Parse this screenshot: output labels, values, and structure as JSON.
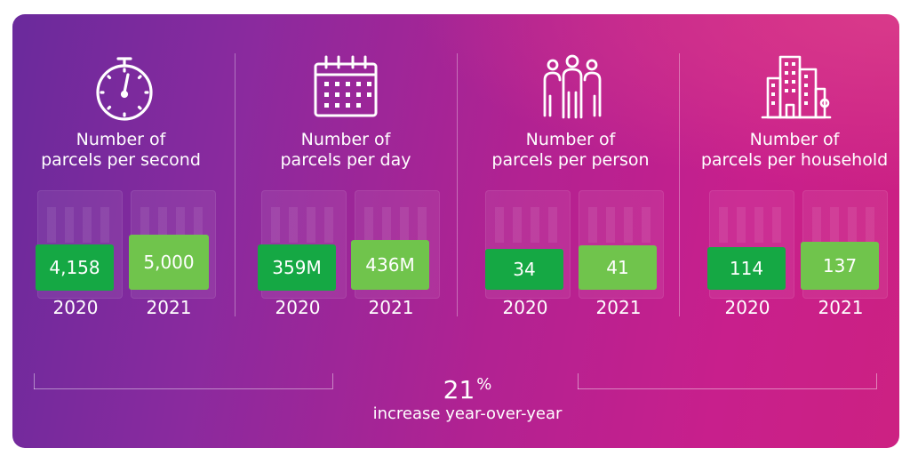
{
  "chart_data": {
    "type": "bar",
    "title": "",
    "panels": [
      {
        "title_line1": "Number of",
        "title_line2": "parcels per second",
        "icon": "stopwatch-icon",
        "values": [
          {
            "year": "2020",
            "label": "4,158",
            "value": 4158
          },
          {
            "year": "2021",
            "label": "5,000",
            "value": 5000
          }
        ]
      },
      {
        "title_line1": "Number of",
        "title_line2": "parcels per day",
        "icon": "calendar-icon",
        "values": [
          {
            "year": "2020",
            "label": "359M",
            "value": 359000000
          },
          {
            "year": "2021",
            "label": "436M",
            "value": 436000000
          }
        ]
      },
      {
        "title_line1": "Number of",
        "title_line2": "parcels per person",
        "icon": "people-icon",
        "values": [
          {
            "year": "2020",
            "label": "34",
            "value": 34
          },
          {
            "year": "2021",
            "label": "41",
            "value": 41
          }
        ]
      },
      {
        "title_line1": "Number of",
        "title_line2": "parcels per household",
        "icon": "buildings-icon",
        "values": [
          {
            "year": "2020",
            "label": "114",
            "value": 114
          },
          {
            "year": "2021",
            "label": "137",
            "value": 137
          }
        ]
      }
    ],
    "summary": {
      "value": "21",
      "unit": "%",
      "text": "increase year-over-year"
    }
  },
  "colors": {
    "bar_2020": "#15a844",
    "bar_2021": "#70c44c",
    "background_start": "#6a2a9c",
    "background_end": "#cc2182"
  }
}
